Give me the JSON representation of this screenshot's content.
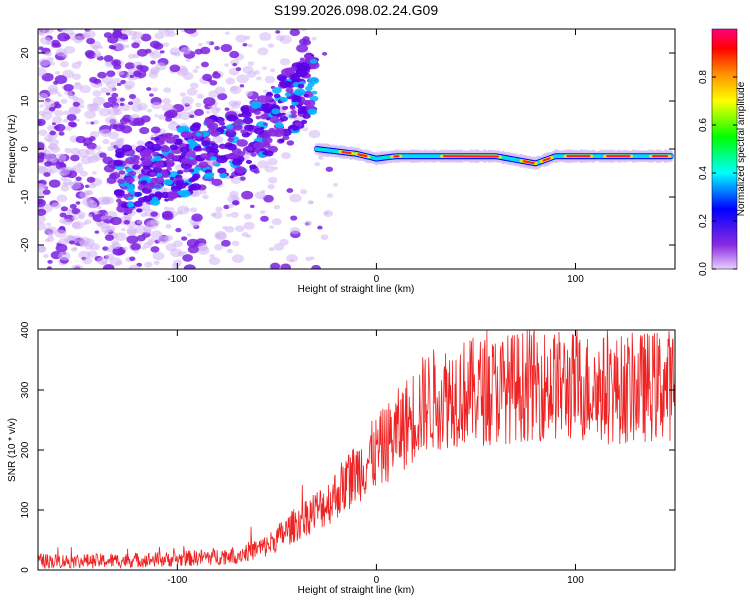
{
  "figure_title": "S199.2026.098.02.24.G09",
  "chart_data": [
    {
      "type": "heatmap",
      "title": "S199.2026.098.02.24.G09",
      "xlabel": "Height of straight line (km)",
      "ylabel": "Frequency (Hz)",
      "xlim": [
        -170,
        150
      ],
      "ylim": [
        -25,
        25
      ],
      "xticks": [
        -100,
        0,
        100
      ],
      "yticks": [
        -20,
        -10,
        0,
        10,
        20
      ],
      "grid": false,
      "colorbar": {
        "label": "Normalized spectral amplitude",
        "range": [
          0.0,
          1.0
        ],
        "ticks": [
          0.0,
          0.2,
          0.4,
          0.6,
          0.8
        ],
        "colormap": [
          "#8a2be2",
          "#0000ff",
          "#00ffff",
          "#00ff00",
          "#ffff00",
          "#ff8800",
          "#ff0000",
          "#ff00aa"
        ]
      },
      "ridge": {
        "description_values": "dominant frequency track vs height",
        "x": [
          -30,
          -20,
          -10,
          0,
          10,
          30,
          60,
          80,
          90,
          110,
          150
        ],
        "y": [
          0,
          -0.5,
          -1,
          -2,
          -1.5,
          -1.5,
          -1.5,
          -3,
          -1.5,
          -1.5,
          -1.5
        ]
      }
    },
    {
      "type": "line",
      "xlabel": "Height of straight line (km)",
      "ylabel": "SNR (10 * v/v)",
      "xlim": [
        -170,
        150
      ],
      "ylim": [
        0,
        400
      ],
      "xticks": [
        -100,
        0,
        100
      ],
      "yticks": [
        0,
        100,
        200,
        300,
        400
      ],
      "grid": false,
      "series": [
        {
          "name": "SNR",
          "color": "#ee2222",
          "trend_x": [
            -170,
            -140,
            -100,
            -70,
            -55,
            -45,
            -35,
            -25,
            -15,
            -5,
            5,
            15,
            25,
            40,
            60,
            80,
            100,
            120,
            150
          ],
          "trend_y": [
            15,
            15,
            18,
            25,
            40,
            65,
            90,
            110,
            145,
            180,
            210,
            245,
            280,
            295,
            300,
            310,
            305,
            300,
            310
          ]
        }
      ]
    }
  ]
}
